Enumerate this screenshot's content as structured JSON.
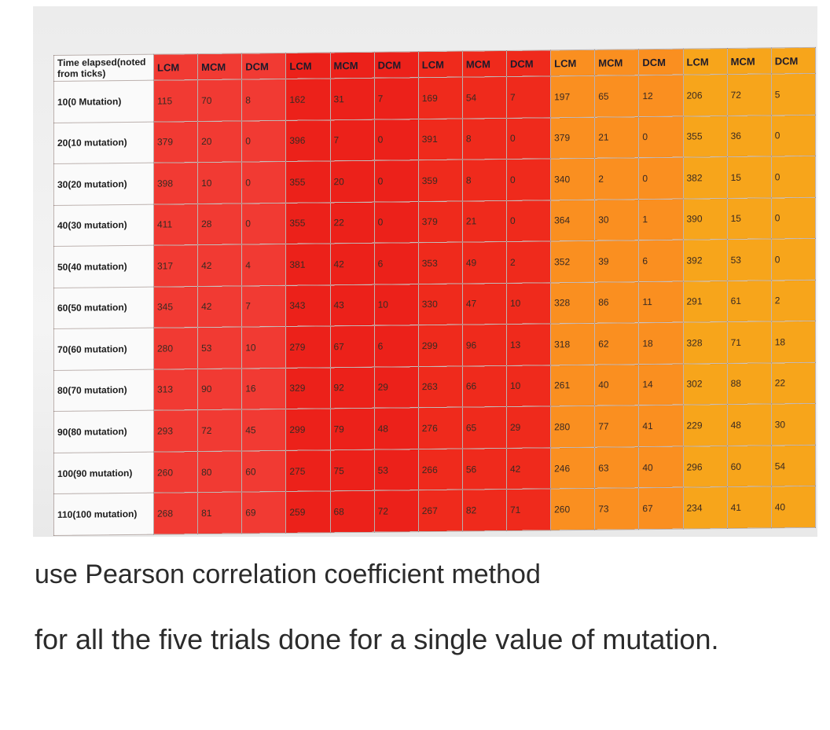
{
  "table": {
    "corner_label": "Time elapsed(noted from ticks)",
    "headers": [
      "LCM",
      "MCM",
      "DCM",
      "LCM",
      "MCM",
      "DCM",
      "LCM",
      "MCM",
      "DCM",
      "LCM",
      "MCM",
      "DCM",
      "LCM",
      "MCM",
      "DCM"
    ],
    "group_colors": [
      "#f13a33",
      "#ec211a",
      "#ef2a1c",
      "#fa8f20",
      "#f7a51b"
    ],
    "rows": [
      {
        "label": "10(0 Mutation)",
        "values": [
          "115",
          "70",
          "8",
          "162",
          "31",
          "7",
          "169",
          "54",
          "7",
          "197",
          "65",
          "12",
          "206",
          "72",
          "5"
        ]
      },
      {
        "label": "20(10 mutation)",
        "values": [
          "379",
          "20",
          "0",
          "396",
          "7",
          "0",
          "391",
          "8",
          "0",
          "379",
          "21",
          "0",
          "355",
          "36",
          "0"
        ]
      },
      {
        "label": "30(20 mutation)",
        "values": [
          "398",
          "10",
          "0",
          "355",
          "20",
          "0",
          "359",
          "8",
          "0",
          "340",
          "2",
          "0",
          "382",
          "15",
          "0"
        ]
      },
      {
        "label": "40(30 mutation)",
        "values": [
          "411",
          "28",
          "0",
          "355",
          "22",
          "0",
          "379",
          "21",
          "0",
          "364",
          "30",
          "1",
          "390",
          "15",
          "0"
        ]
      },
      {
        "label": "50(40 mutation)",
        "values": [
          "317",
          "42",
          "4",
          "381",
          "42",
          "6",
          "353",
          "49",
          "2",
          "352",
          "39",
          "6",
          "392",
          "53",
          "0"
        ]
      },
      {
        "label": "60(50 mutation)",
        "values": [
          "345",
          "42",
          "7",
          "343",
          "43",
          "10",
          "330",
          "47",
          "10",
          "328",
          "86",
          "11",
          "291",
          "61",
          "2"
        ]
      },
      {
        "label": "70(60 mutation)",
        "values": [
          "280",
          "53",
          "10",
          "279",
          "67",
          "6",
          "299",
          "96",
          "13",
          "318",
          "62",
          "18",
          "328",
          "71",
          "18"
        ]
      },
      {
        "label": "80(70 mutation)",
        "values": [
          "313",
          "90",
          "16",
          "329",
          "92",
          "29",
          "263",
          "66",
          "10",
          "261",
          "40",
          "14",
          "302",
          "88",
          "22"
        ]
      },
      {
        "label": "90(80 mutation)",
        "values": [
          "293",
          "72",
          "45",
          "299",
          "79",
          "48",
          "276",
          "65",
          "29",
          "280",
          "77",
          "41",
          "229",
          "48",
          "30"
        ]
      },
      {
        "label": "100(90 mutation)",
        "values": [
          "260",
          "80",
          "60",
          "275",
          "75",
          "53",
          "266",
          "56",
          "42",
          "246",
          "63",
          "40",
          "296",
          "60",
          "54"
        ]
      },
      {
        "label": "110(100 mutation)",
        "values": [
          "268",
          "81",
          "69",
          "259",
          "68",
          "72",
          "267",
          "82",
          "71",
          "260",
          "73",
          "67",
          "234",
          "41",
          "40"
        ]
      }
    ]
  },
  "caption": {
    "line1": "use Pearson correlation coefficient method",
    "line2": "for all the five trials done for a single value of mutation."
  }
}
